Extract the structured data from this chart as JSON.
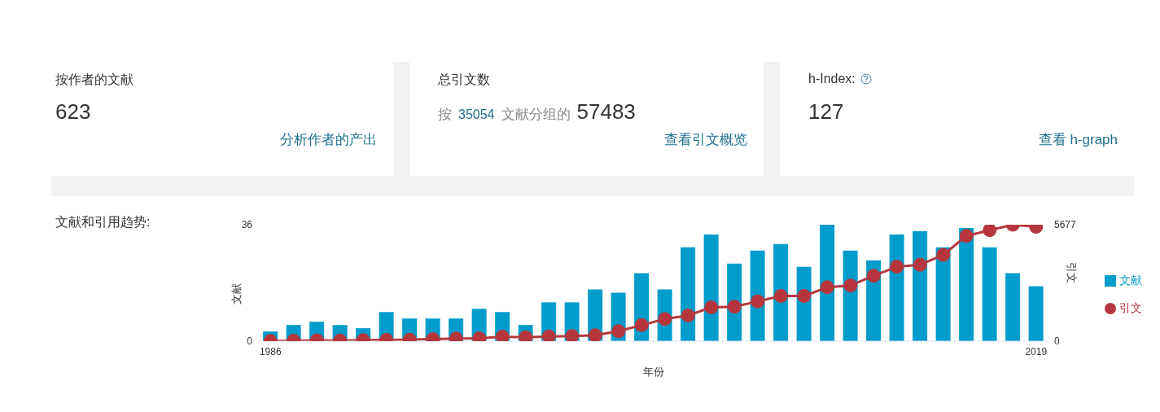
{
  "chart_data": [
    {
      "type": "other",
      "title": "按作者的文献",
      "annotations": [
        "623",
        "分析作者的产出"
      ]
    },
    {
      "type": "other",
      "title": "总引文数",
      "annotations": [
        "按",
        "35054",
        "文献分组的",
        "57483",
        "查看引文概览"
      ]
    },
    {
      "type": "other",
      "title": "h-Index:",
      "annotations": [
        "127",
        "查看 h-graph"
      ]
    },
    {
      "type": "other",
      "title": "文献和引用趋势:"
    },
    {
      "type": "bar",
      "xlabel": "年份",
      "ylabel": "文献",
      "y2label": "引文",
      "categories": [
        "1986",
        null,
        null,
        null,
        null,
        null,
        null,
        null,
        null,
        null,
        null,
        null,
        null,
        null,
        null,
        null,
        null,
        null,
        null,
        null,
        null,
        null,
        null,
        null,
        null,
        null,
        null,
        null,
        null,
        null,
        null,
        null,
        null,
        "2019"
      ],
      "series": [
        {
          "name": "文献",
          "type": "bar",
          "color": "#009ccc",
          "values": [
            3,
            5,
            6,
            5,
            4,
            9,
            7,
            7,
            7,
            10,
            9,
            5,
            12,
            12,
            16,
            15,
            21,
            16,
            29,
            33,
            24,
            28,
            30,
            23,
            36,
            28,
            25,
            33,
            34,
            29,
            35,
            29,
            21,
            17
          ]
        },
        {
          "name": "引文",
          "type": "line",
          "axis": "y2",
          "color": "#b5373d",
          "values": [
            10,
            20,
            40,
            30,
            50,
            60,
            70,
            100,
            130,
            140,
            220,
            190,
            230,
            250,
            290,
            490,
            780,
            1080,
            1250,
            1650,
            1680,
            1940,
            2200,
            2200,
            2630,
            2710,
            3190,
            3630,
            3720,
            4210,
            5130,
            5410,
            5677,
            5580
          ]
        }
      ],
      "ylim": [
        0,
        36
      ],
      "yticks": [
        0,
        36
      ],
      "y2lim": [
        0,
        5677
      ],
      "y2ticks": [
        0,
        5677
      ],
      "legend": "right",
      "marker": "circle"
    }
  ]
}
